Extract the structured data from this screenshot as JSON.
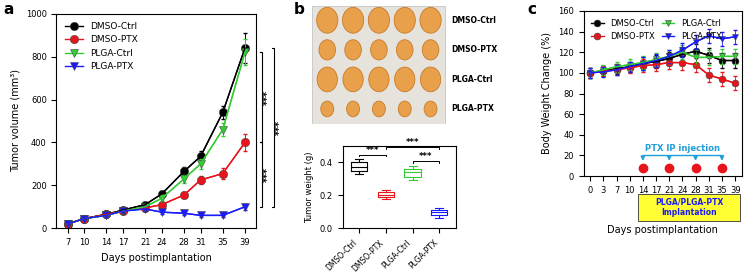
{
  "chart_data": [
    {
      "type": "line",
      "panel": "a",
      "x_label": "Days postimplantation",
      "y_label": "Tumor volume (mm³)",
      "x": [
        7,
        10,
        14,
        17,
        21,
        24,
        28,
        31,
        35,
        39
      ],
      "xlim": [
        5,
        41
      ],
      "xticks": [
        7,
        10,
        14,
        17,
        21,
        24,
        28,
        31,
        35,
        39
      ],
      "ylim": [
        0,
        1000
      ],
      "yticks": [
        0,
        200,
        400,
        600,
        800,
        1000
      ],
      "legend": "upper left",
      "series": [
        {
          "name": "DMSO-Ctrl",
          "color": "#000000",
          "marker": "circle",
          "values": [
            20,
            45,
            65,
            85,
            110,
            160,
            265,
            335,
            540,
            840
          ],
          "errors": [
            3,
            5,
            6,
            8,
            10,
            15,
            20,
            25,
            30,
            70
          ]
        },
        {
          "name": "DMSO-PTX",
          "color": "#e8141b",
          "marker": "circle",
          "values": [
            20,
            45,
            65,
            80,
            95,
            110,
            155,
            225,
            255,
            400
          ],
          "errors": [
            3,
            5,
            6,
            8,
            10,
            12,
            15,
            20,
            25,
            40
          ]
        },
        {
          "name": "PLGA-Ctrl",
          "color": "#33cc33",
          "marker": "triangle_down",
          "values": [
            20,
            45,
            60,
            80,
            100,
            140,
            230,
            300,
            460,
            820
          ],
          "errors": [
            3,
            5,
            6,
            8,
            10,
            15,
            20,
            25,
            30,
            60
          ]
        },
        {
          "name": "PLGA-PTX",
          "color": "#1a1aff",
          "marker": "triangle_down",
          "values": [
            20,
            45,
            60,
            80,
            90,
            75,
            70,
            60,
            60,
            100
          ],
          "errors": [
            3,
            5,
            6,
            8,
            8,
            8,
            8,
            8,
            8,
            15
          ]
        }
      ],
      "brackets": [
        {
          "text": "***",
          "series": [
            "DMSO-Ctrl",
            "PLGA-PTX"
          ]
        },
        {
          "text": "***",
          "series": [
            "PLGA-Ctrl",
            "DMSO-PTX"
          ]
        },
        {
          "text": "***",
          "series": [
            "DMSO-PTX",
            "PLGA-PTX"
          ]
        }
      ]
    },
    {
      "type": "box",
      "panel": "b",
      "y_label": "Tumor weight (g)",
      "photo_labels": [
        "DMSO-Ctrl",
        "DMSO-PTX",
        "PLGA-Ctrl",
        "PLGA-PTX"
      ],
      "categories": [
        "DMSO-Ctrl",
        "DMSO-PTX",
        "PLGA-Ctrl",
        "PLGA-PTX"
      ],
      "colors": [
        "#000000",
        "#e8141b",
        "#33cc33",
        "#1a1aff"
      ],
      "median": [
        0.37,
        0.2,
        0.34,
        0.1
      ],
      "q1": [
        0.35,
        0.19,
        0.31,
        0.08
      ],
      "q3": [
        0.4,
        0.22,
        0.36,
        0.11
      ],
      "whisker_low": [
        0.33,
        0.18,
        0.29,
        0.06
      ],
      "whisker_high": [
        0.42,
        0.23,
        0.38,
        0.12
      ],
      "ylim": [
        0,
        0.5
      ],
      "yticks": [
        {
          "value": 0,
          "label": "0.0"
        },
        {
          "value": 0.2,
          "label": "0.2"
        },
        {
          "value": 0.4,
          "label": "0.4"
        }
      ],
      "brackets": [
        {
          "text": "***",
          "categories": [
            "DMSO-Ctrl",
            "DMSO-PTX"
          ]
        },
        {
          "text": "***",
          "categories": [
            "PLGA-Ctrl",
            "PLGA-PTX"
          ]
        },
        {
          "text": "***",
          "categories": [
            "DMSO-PTX",
            "PLGA-PTX"
          ]
        }
      ]
    },
    {
      "type": "line",
      "panel": "c",
      "x_label": "Days postimplantation",
      "y_label": "Body Weight Change (%)",
      "categories": [
        "0",
        "3",
        "7",
        "10",
        "14",
        "17",
        "21",
        "24",
        "28",
        "31",
        "35",
        "39"
      ],
      "ylim": [
        0,
        160
      ],
      "yticks": [
        0,
        20,
        40,
        60,
        80,
        100,
        120,
        140,
        160
      ],
      "legend": "upper left",
      "series": [
        {
          "name": "DMSO-Ctrl",
          "color": "#000000",
          "marker": "circle",
          "values": [
            100,
            102,
            104,
            106,
            109,
            111,
            114,
            118,
            121,
            117,
            112,
            112
          ],
          "errors": [
            5,
            5,
            5,
            5,
            6,
            6,
            6,
            7,
            7,
            7,
            7,
            7
          ]
        },
        {
          "name": "DMSO-PTX",
          "color": "#e8141b",
          "marker": "circle",
          "values": [
            100,
            102,
            103,
            105,
            107,
            108,
            110,
            110,
            108,
            98,
            94,
            90
          ],
          "errors": [
            5,
            5,
            5,
            5,
            6,
            6,
            6,
            7,
            7,
            7,
            7,
            7
          ]
        },
        {
          "name": "PLGA-Ctrl",
          "color": "#33cc33",
          "marker": "triangle_down",
          "values": [
            100,
            103,
            106,
            108,
            110,
            113,
            116,
            120,
            115,
            115,
            116,
            116
          ],
          "errors": [
            5,
            5,
            5,
            5,
            6,
            6,
            6,
            7,
            7,
            7,
            7,
            7
          ]
        },
        {
          "name": "PLGA-PTX",
          "color": "#1a1aff",
          "marker": "triangle_down",
          "values": [
            100,
            101,
            103,
            106,
            109,
            112,
            116,
            122,
            130,
            136,
            133,
            135
          ],
          "errors": [
            5,
            5,
            5,
            5,
            6,
            6,
            6,
            7,
            7,
            7,
            7,
            7
          ]
        }
      ],
      "injection_label": "PTX IP injection",
      "injection_days": [
        "14",
        "21",
        "28",
        "35"
      ],
      "injection_color": "#e8141b",
      "implantation_label": "PLGA/PLGA-PTX\nImplantation",
      "implantation_days": [
        "14",
        "39"
      ],
      "implantation_color": "#ffff33"
    }
  ]
}
